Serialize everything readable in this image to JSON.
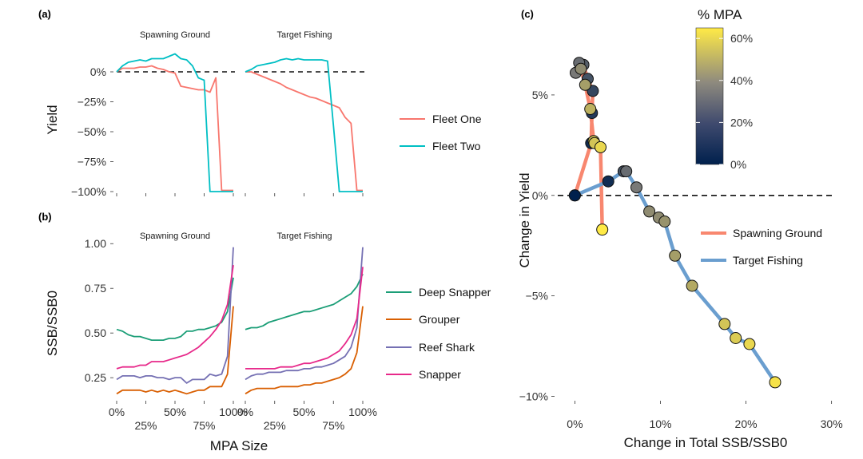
{
  "panels": {
    "a": "(a)",
    "b": "(b)",
    "c": "(c)"
  },
  "chart_data": [
    {
      "id": "a",
      "type": "line",
      "title": "",
      "ylabel": "Yield",
      "xlabel": "",
      "ylim": [
        -100,
        22
      ],
      "yticks": [
        0,
        -25,
        -50,
        -75,
        -100
      ],
      "ytick_labels": [
        "0%",
        "−25%",
        "−50%",
        "−75%",
        "−100%"
      ],
      "facets": [
        "Spawning Ground",
        "Target Fishing"
      ],
      "reference_line": 0,
      "legend": [
        {
          "name": "Fleet One",
          "color": "#F8766D"
        },
        {
          "name": "Fleet Two",
          "color": "#00BFC4"
        }
      ],
      "series": [
        {
          "name": "Fleet One",
          "facet": 0,
          "color": "#F8766D",
          "x": [
            0,
            5,
            10,
            15,
            20,
            25,
            30,
            35,
            40,
            45,
            50,
            55,
            60,
            65,
            70,
            75,
            80,
            85,
            90,
            95,
            100
          ],
          "y": [
            0,
            3,
            3,
            3,
            4,
            4,
            5,
            3,
            2,
            0,
            -1,
            -12,
            -13,
            -14,
            -15,
            -15,
            -17,
            -5,
            -99,
            -99,
            -99
          ]
        },
        {
          "name": "Fleet Two",
          "facet": 0,
          "color": "#00BFC4",
          "x": [
            0,
            5,
            10,
            15,
            20,
            25,
            30,
            35,
            40,
            45,
            50,
            55,
            60,
            65,
            70,
            75,
            80,
            85,
            90,
            95,
            100
          ],
          "y": [
            0,
            5,
            8,
            9,
            10,
            9,
            11,
            11,
            11,
            13,
            15,
            11,
            10,
            5,
            -5,
            -7,
            -100,
            -100,
            -100,
            -100,
            -100
          ]
        },
        {
          "name": "Fleet One",
          "facet": 1,
          "color": "#F8766D",
          "x": [
            0,
            5,
            10,
            15,
            20,
            25,
            30,
            35,
            40,
            45,
            50,
            55,
            60,
            65,
            70,
            75,
            80,
            85,
            90,
            95,
            100
          ],
          "y": [
            0,
            0,
            -2,
            -4,
            -6,
            -8,
            -10,
            -13,
            -15,
            -17,
            -19,
            -21,
            -22,
            -24,
            -26,
            -28,
            -30,
            -38,
            -43,
            -99,
            -99
          ]
        },
        {
          "name": "Fleet Two",
          "facet": 1,
          "color": "#00BFC4",
          "x": [
            0,
            5,
            10,
            15,
            20,
            25,
            30,
            35,
            40,
            45,
            50,
            55,
            60,
            65,
            70,
            75,
            80,
            85,
            90,
            95,
            100
          ],
          "y": [
            0,
            2,
            5,
            6,
            7,
            8,
            10,
            11,
            10,
            11,
            10,
            10,
            10,
            10,
            9,
            -45,
            -100,
            -100,
            -100,
            -100,
            -100
          ]
        }
      ]
    },
    {
      "id": "b",
      "type": "line",
      "title": "",
      "ylabel": "SSB/SSB0",
      "xlabel": "MPA Size",
      "xlim": [
        0,
        100
      ],
      "ylim": [
        0.13,
        1.01
      ],
      "xticks": [
        0,
        25,
        50,
        75,
        100
      ],
      "xtick_labels": [
        "0%",
        "25%",
        "50%",
        "75%",
        "100%"
      ],
      "yticks": [
        1.0,
        0.75,
        0.5,
        0.25
      ],
      "ytick_labels": [
        "1.00",
        "0.75",
        "0.50",
        "0.25"
      ],
      "facets": [
        "Spawning Ground",
        "Target Fishing"
      ],
      "legend": [
        {
          "name": "Deep Snapper",
          "color": "#1B9E77"
        },
        {
          "name": "Grouper",
          "color": "#D95F02"
        },
        {
          "name": "Reef Shark",
          "color": "#7570B3"
        },
        {
          "name": "Snapper",
          "color": "#E7298A"
        }
      ],
      "series": [
        {
          "name": "Deep Snapper",
          "facet": 0,
          "color": "#1B9E77",
          "x": [
            0,
            5,
            10,
            15,
            20,
            25,
            30,
            35,
            40,
            45,
            50,
            55,
            60,
            65,
            70,
            75,
            80,
            85,
            90,
            95,
            100
          ],
          "y": [
            0.52,
            0.51,
            0.49,
            0.48,
            0.48,
            0.47,
            0.46,
            0.46,
            0.46,
            0.47,
            0.47,
            0.48,
            0.51,
            0.51,
            0.52,
            0.52,
            0.53,
            0.54,
            0.56,
            0.62,
            0.81
          ]
        },
        {
          "name": "Grouper",
          "facet": 0,
          "color": "#D95F02",
          "x": [
            0,
            5,
            10,
            15,
            20,
            25,
            30,
            35,
            40,
            45,
            50,
            55,
            60,
            65,
            70,
            75,
            80,
            85,
            90,
            95,
            100
          ],
          "y": [
            0.16,
            0.18,
            0.18,
            0.18,
            0.18,
            0.17,
            0.18,
            0.17,
            0.18,
            0.17,
            0.18,
            0.17,
            0.16,
            0.17,
            0.18,
            0.18,
            0.2,
            0.2,
            0.2,
            0.27,
            0.65
          ]
        },
        {
          "name": "Reef Shark",
          "facet": 0,
          "color": "#7570B3",
          "x": [
            0,
            5,
            10,
            15,
            20,
            25,
            30,
            35,
            40,
            45,
            50,
            55,
            60,
            65,
            70,
            75,
            80,
            85,
            90,
            95,
            100
          ],
          "y": [
            0.24,
            0.26,
            0.26,
            0.26,
            0.25,
            0.26,
            0.26,
            0.25,
            0.25,
            0.24,
            0.25,
            0.25,
            0.22,
            0.24,
            0.24,
            0.24,
            0.27,
            0.26,
            0.27,
            0.37,
            0.98
          ]
        },
        {
          "name": "Snapper",
          "facet": 0,
          "color": "#E7298A",
          "x": [
            0,
            5,
            10,
            15,
            20,
            25,
            30,
            35,
            40,
            45,
            50,
            55,
            60,
            65,
            70,
            75,
            80,
            85,
            90,
            95,
            100
          ],
          "y": [
            0.3,
            0.31,
            0.31,
            0.31,
            0.32,
            0.32,
            0.34,
            0.34,
            0.34,
            0.35,
            0.36,
            0.37,
            0.38,
            0.4,
            0.42,
            0.45,
            0.48,
            0.52,
            0.57,
            0.66,
            0.88
          ]
        },
        {
          "name": "Deep Snapper",
          "facet": 1,
          "color": "#1B9E77",
          "x": [
            0,
            5,
            10,
            15,
            20,
            25,
            30,
            35,
            40,
            45,
            50,
            55,
            60,
            65,
            70,
            75,
            80,
            85,
            90,
            95,
            100
          ],
          "y": [
            0.52,
            0.53,
            0.53,
            0.54,
            0.56,
            0.57,
            0.58,
            0.59,
            0.6,
            0.61,
            0.62,
            0.62,
            0.63,
            0.64,
            0.65,
            0.66,
            0.68,
            0.7,
            0.72,
            0.76,
            0.83
          ]
        },
        {
          "name": "Grouper",
          "facet": 1,
          "color": "#D95F02",
          "x": [
            0,
            5,
            10,
            15,
            20,
            25,
            30,
            35,
            40,
            45,
            50,
            55,
            60,
            65,
            70,
            75,
            80,
            85,
            90,
            95,
            100
          ],
          "y": [
            0.16,
            0.18,
            0.19,
            0.19,
            0.19,
            0.19,
            0.2,
            0.2,
            0.2,
            0.2,
            0.21,
            0.21,
            0.22,
            0.22,
            0.23,
            0.24,
            0.25,
            0.27,
            0.3,
            0.39,
            0.65
          ]
        },
        {
          "name": "Reef Shark",
          "facet": 1,
          "color": "#7570B3",
          "x": [
            0,
            5,
            10,
            15,
            20,
            25,
            30,
            35,
            40,
            45,
            50,
            55,
            60,
            65,
            70,
            75,
            80,
            85,
            90,
            95,
            100
          ],
          "y": [
            0.24,
            0.26,
            0.27,
            0.27,
            0.28,
            0.28,
            0.28,
            0.29,
            0.29,
            0.29,
            0.3,
            0.3,
            0.31,
            0.31,
            0.32,
            0.33,
            0.35,
            0.37,
            0.42,
            0.53,
            0.98
          ]
        },
        {
          "name": "Snapper",
          "facet": 1,
          "color": "#E7298A",
          "x": [
            0,
            5,
            10,
            15,
            20,
            25,
            30,
            35,
            40,
            45,
            50,
            55,
            60,
            65,
            70,
            75,
            80,
            85,
            90,
            95,
            100
          ],
          "y": [
            0.3,
            0.3,
            0.3,
            0.3,
            0.3,
            0.3,
            0.31,
            0.31,
            0.31,
            0.32,
            0.33,
            0.33,
            0.34,
            0.35,
            0.36,
            0.38,
            0.4,
            0.44,
            0.49,
            0.58,
            0.87
          ]
        }
      ]
    },
    {
      "id": "c",
      "type": "scatter",
      "title": "",
      "xlabel": "Change in Total SSB/SSB0",
      "ylabel": "Change in Yield",
      "xlim": [
        -0.02,
        0.305
      ],
      "ylim": [
        -0.101,
        0.075
      ],
      "xticks": [
        0,
        0.1,
        0.2,
        0.3
      ],
      "xtick_labels": [
        "0%",
        "10%",
        "20%",
        "30%"
      ],
      "yticks": [
        0.05,
        0,
        -0.05,
        -0.1
      ],
      "ytick_labels": [
        "5%",
        "0%",
        "−5%",
        "−10%"
      ],
      "reference_line": 0,
      "colorbar": {
        "title": "% MPA",
        "ticks": [
          0,
          20,
          40,
          60
        ],
        "tick_labels": [
          "0%",
          "20%",
          "40%",
          "60%"
        ],
        "range": [
          0,
          65
        ],
        "low_color": "#00204D",
        "mid_color": "#7C7B78",
        "high_color": "#FFEA46"
      },
      "legend": [
        {
          "name": "Spawning Ground",
          "color": "#F8876F"
        },
        {
          "name": "Target Fishing",
          "color": "#6A9ECF"
        }
      ],
      "series": [
        {
          "name": "Spawning Ground",
          "color": "#F8876F",
          "x": [
            0.0,
            0.019,
            0.02,
            0.021,
            0.015,
            0.01,
            0.005,
            0.001,
            0.007,
            0.012,
            0.018,
            0.022,
            0.023,
            0.03,
            0.032
          ],
          "y": [
            0.0,
            0.026,
            0.041,
            0.052,
            0.058,
            0.065,
            0.066,
            0.061,
            0.063,
            0.055,
            0.043,
            0.027,
            0.026,
            0.024,
            -0.017
          ],
          "mpa": [
            0,
            5,
            10,
            15,
            20,
            25,
            30,
            35,
            40,
            45,
            50,
            55,
            55,
            60,
            65
          ]
        },
        {
          "name": "Target Fishing",
          "color": "#6A9ECF",
          "x": [
            0.0,
            0.039,
            0.057,
            0.06,
            0.072,
            0.087,
            0.098,
            0.105,
            0.117,
            0.137,
            0.175,
            0.188,
            0.204,
            0.234
          ],
          "y": [
            0.0,
            0.007,
            0.012,
            0.012,
            0.004,
            -0.008,
            -0.011,
            -0.013,
            -0.03,
            -0.045,
            -0.064,
            -0.071,
            -0.074,
            -0.093
          ],
          "mpa": [
            0,
            5,
            20,
            30,
            35,
            40,
            40,
            42,
            45,
            48,
            55,
            57,
            60,
            63
          ]
        }
      ]
    }
  ]
}
